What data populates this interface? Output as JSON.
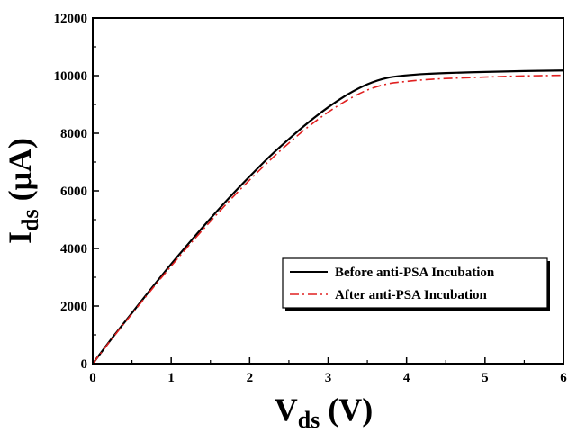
{
  "chart_data": {
    "type": "line",
    "xlabel_main": "V",
    "xlabel_sub": "ds",
    "xlabel_unit": " (V)",
    "ylabel_main": "I",
    "ylabel_sub": "ds",
    "ylabel_unit": " (μA)",
    "xlim": [
      0,
      6
    ],
    "ylim": [
      0,
      12000
    ],
    "xticks": [
      0,
      1,
      2,
      3,
      4,
      5,
      6
    ],
    "yticks": [
      0,
      2000,
      4000,
      6000,
      8000,
      10000,
      12000
    ],
    "xtick_labels": [
      "0",
      "1",
      "2",
      "3",
      "4",
      "5",
      "6"
    ],
    "ytick_labels": [
      "0",
      "2000",
      "4000",
      "6000",
      "8000",
      "10000",
      "12000"
    ],
    "grid": false,
    "legend_position": "lower-right",
    "series": [
      {
        "name": "Before anti-PSA Incubation",
        "color": "#000000",
        "style": "solid",
        "x": [
          0,
          0.25,
          0.5,
          0.75,
          1.0,
          1.25,
          1.5,
          1.75,
          2.0,
          2.25,
          2.5,
          2.75,
          3.0,
          3.25,
          3.5,
          3.75,
          4.0,
          4.25,
          4.5,
          5.0,
          5.5,
          6.0
        ],
        "y": [
          0,
          900,
          1760,
          2620,
          3460,
          4260,
          5040,
          5790,
          6500,
          7180,
          7800,
          8380,
          8900,
          9350,
          9700,
          9920,
          10010,
          10060,
          10090,
          10130,
          10160,
          10180
        ]
      },
      {
        "name": "After anti-PSA Incubation",
        "color": "#e02020",
        "style": "dashdot",
        "x": [
          0,
          0.25,
          0.5,
          0.75,
          1.0,
          1.25,
          1.5,
          1.75,
          2.0,
          2.25,
          2.5,
          2.75,
          3.0,
          3.25,
          3.5,
          3.75,
          4.0,
          4.25,
          4.5,
          5.0,
          5.5,
          6.0
        ],
        "y": [
          0,
          880,
          1730,
          2570,
          3390,
          4180,
          4940,
          5680,
          6380,
          7040,
          7660,
          8230,
          8730,
          9160,
          9500,
          9710,
          9800,
          9860,
          9900,
          9950,
          9990,
          10010
        ]
      }
    ]
  }
}
